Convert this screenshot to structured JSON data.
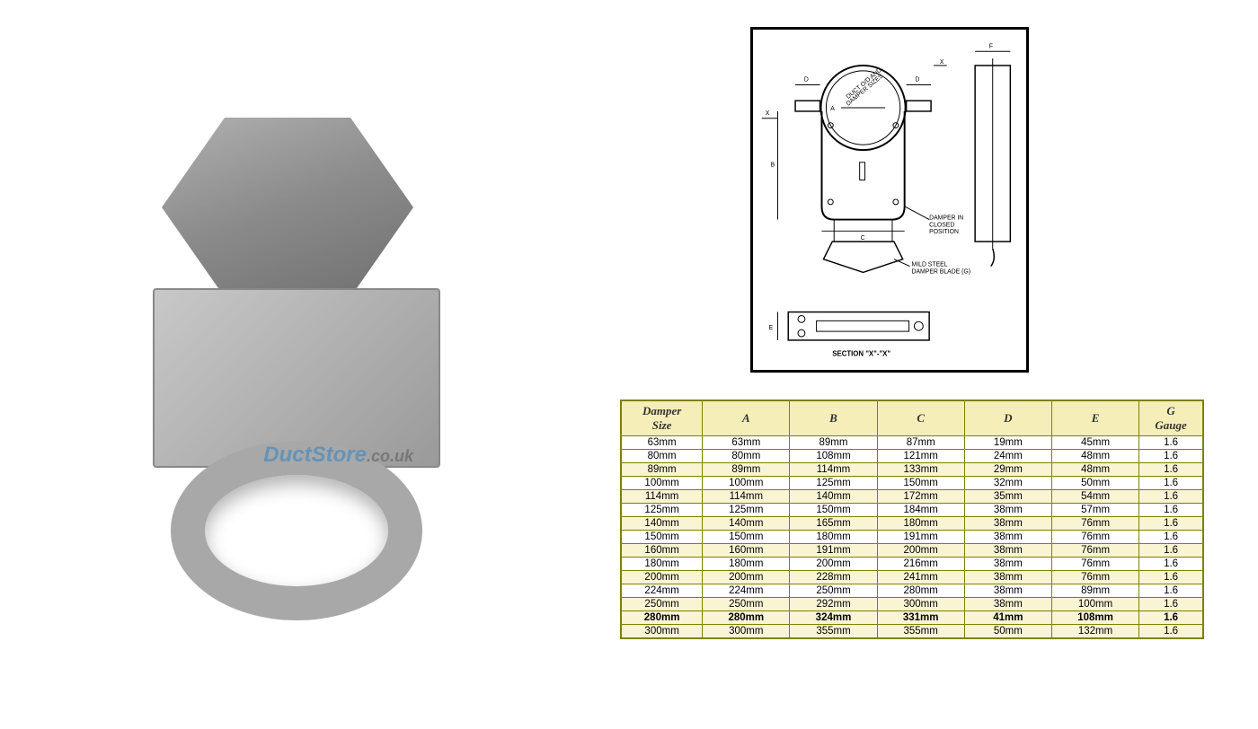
{
  "watermark": {
    "brand_part1": "DuctStore",
    "brand_part2": ".co.uk",
    "brand1_color": "#6593b8",
    "brand2_color": "#777777"
  },
  "diagram": {
    "labels": {
      "duct_note": "DUCT O/D AND DAMPER SIZES",
      "closed": "DAMPER IN CLOSED POSITION",
      "blade": "MILD STEEL DAMPER BLADE (G)",
      "section": "SECTION \"X\"-\"X\"",
      "dims": [
        "A",
        "B",
        "C",
        "D",
        "E",
        "F",
        "X"
      ]
    }
  },
  "table": {
    "columns": [
      "Damper Size",
      "A",
      "B",
      "C",
      "D",
      "E",
      "G Gauge"
    ],
    "column_widths": [
      "14%",
      "15%",
      "15%",
      "15%",
      "15%",
      "15%",
      "11%"
    ],
    "header_bg": "#f5eeb8",
    "alt_row_bg": "#f9f4d4",
    "border_color": "#808000",
    "highlight_row_index": 13,
    "rows": [
      [
        "63mm",
        "63mm",
        "89mm",
        "87mm",
        "19mm",
        "45mm",
        "1.6"
      ],
      [
        "80mm",
        "80mm",
        "108mm",
        "121mm",
        "24mm",
        "48mm",
        "1.6"
      ],
      [
        "89mm",
        "89mm",
        "114mm",
        "133mm",
        "29mm",
        "48mm",
        "1.6"
      ],
      [
        "100mm",
        "100mm",
        "125mm",
        "150mm",
        "32mm",
        "50mm",
        "1.6"
      ],
      [
        "114mm",
        "114mm",
        "140mm",
        "172mm",
        "35mm",
        "54mm",
        "1.6"
      ],
      [
        "125mm",
        "125mm",
        "150mm",
        "184mm",
        "38mm",
        "57mm",
        "1.6"
      ],
      [
        "140mm",
        "140mm",
        "165mm",
        "180mm",
        "38mm",
        "76mm",
        "1.6"
      ],
      [
        "150mm",
        "150mm",
        "180mm",
        "191mm",
        "38mm",
        "76mm",
        "1.6"
      ],
      [
        "160mm",
        "160mm",
        "191mm",
        "200mm",
        "38mm",
        "76mm",
        "1.6"
      ],
      [
        "180mm",
        "180mm",
        "200mm",
        "216mm",
        "38mm",
        "76mm",
        "1.6"
      ],
      [
        "200mm",
        "200mm",
        "228mm",
        "241mm",
        "38mm",
        "76mm",
        "1.6"
      ],
      [
        "224mm",
        "224mm",
        "250mm",
        "280mm",
        "38mm",
        "89mm",
        "1.6"
      ],
      [
        "250mm",
        "250mm",
        "292mm",
        "300mm",
        "38mm",
        "100mm",
        "1.6"
      ],
      [
        "280mm",
        "280mm",
        "324mm",
        "331mm",
        "41mm",
        "108mm",
        "1.6"
      ],
      [
        "300mm",
        "300mm",
        "355mm",
        "355mm",
        "50mm",
        "132mm",
        "1.6"
      ]
    ]
  }
}
